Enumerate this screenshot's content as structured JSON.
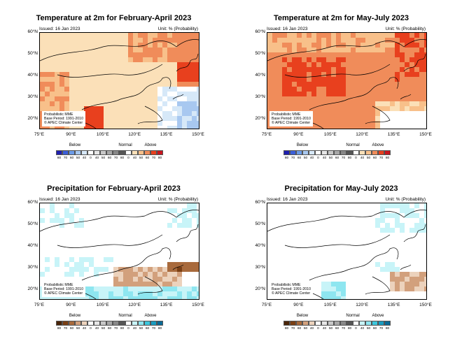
{
  "panels": [
    {
      "id": "temp-fma",
      "title": "Temperature at 2m for February-April 2023",
      "issued": "Issued: 16 Jan 2023",
      "unit": "Unit: % (Probability)",
      "info": [
        "Probabilistic MME",
        "Base Period: 1991-2010",
        "© APEC Climate Center"
      ],
      "lat_labels": [
        "60°N",
        "50°N",
        "40°N",
        "30°N",
        "20°N"
      ],
      "lon_labels": [
        "75°E",
        "90°E",
        "105°E",
        "120°E",
        "135°E",
        "150°E"
      ],
      "legend_categories": [
        "Below",
        "Normal",
        "Above"
      ],
      "legend_ticks": [
        "80",
        "70",
        "60",
        "50",
        "40",
        "0",
        "40",
        "50",
        "60",
        "70",
        "80",
        "0",
        "40",
        "50",
        "60",
        "70",
        "80"
      ],
      "legend_colors": [
        "#1f1fb0",
        "#3b5fd8",
        "#6c9be8",
        "#a8c8f0",
        "#d6e8f8",
        "#ffffff",
        "#e6e6e6",
        "#c8c8c8",
        "#a8a8a8",
        "#888888",
        "#555555",
        "#ffffff",
        "#fbe0b8",
        "#f8c08a",
        "#f08c5a",
        "#e8401e",
        "#c8141e"
      ],
      "kind": "temp"
    },
    {
      "id": "temp-mjj",
      "title": "Temperature at 2m for May-July 2023",
      "issued": "Issued: 16 Jan 2023",
      "unit": "Unit: % (Probability)",
      "info": [
        "Probabilistic MME",
        "Base Period: 1991-2010",
        "© APEC Climate Center"
      ],
      "lat_labels": [
        "60°N",
        "50°N",
        "40°N",
        "30°N",
        "20°N"
      ],
      "lon_labels": [
        "75°E",
        "90°E",
        "105°E",
        "120°E",
        "135°E",
        "150°E"
      ],
      "legend_categories": [
        "Below",
        "Normal",
        "Above"
      ],
      "legend_ticks": [
        "80",
        "70",
        "60",
        "50",
        "40",
        "0",
        "40",
        "50",
        "60",
        "70",
        "80",
        "0",
        "40",
        "50",
        "60",
        "70",
        "80"
      ],
      "legend_colors": [
        "#1f1fb0",
        "#3b5fd8",
        "#6c9be8",
        "#a8c8f0",
        "#d6e8f8",
        "#ffffff",
        "#e6e6e6",
        "#c8c8c8",
        "#a8a8a8",
        "#888888",
        "#555555",
        "#ffffff",
        "#fbe0b8",
        "#f8c08a",
        "#f08c5a",
        "#e8401e",
        "#c8141e"
      ],
      "kind": "temp2"
    },
    {
      "id": "prec-fma",
      "title": "Precipitation for February-April 2023",
      "issued": "Issued: 16 Jan 2023",
      "unit": "Unit: % (Probability)",
      "info": [
        "Probabilistic MME",
        "Base Period: 1991-2010",
        "© APEC Climate Center"
      ],
      "lat_labels": [
        "60°N",
        "50°N",
        "40°N",
        "30°N",
        "20°N"
      ],
      "lon_labels": [
        "75°E",
        "90°E",
        "105°E",
        "120°E",
        "135°E",
        "150°E"
      ],
      "legend_categories": [
        "Below",
        "Normal",
        "Above"
      ],
      "legend_ticks": [
        "80",
        "70",
        "60",
        "50",
        "40",
        "0",
        "40",
        "50",
        "60",
        "70",
        "80",
        "0",
        "40",
        "50",
        "60",
        "70",
        "80"
      ],
      "legend_colors": [
        "#4a2408",
        "#7a3f14",
        "#a86a3c",
        "#d2a07c",
        "#ecd2bc",
        "#ffffff",
        "#e6e6e6",
        "#c8c8c8",
        "#a8a8a8",
        "#888888",
        "#555555",
        "#ffffff",
        "#c8f4f8",
        "#8ee6f0",
        "#3cc6dc",
        "#1a9cc0",
        "#0a6a96"
      ],
      "kind": "prec"
    },
    {
      "id": "prec-mjj",
      "title": "Precipitation for May-July 2023",
      "issued": "Issued: 16 Jan 2023",
      "unit": "Unit: % (Probability)",
      "info": [
        "Probabilistic MME",
        "Base Period: 1991-2010",
        "© APEC Climate Center"
      ],
      "lat_labels": [
        "60°N",
        "50°N",
        "40°N",
        "30°N",
        "20°N"
      ],
      "lon_labels": [
        "75°E",
        "90°E",
        "105°E",
        "120°E",
        "135°E",
        "150°E"
      ],
      "legend_categories": [
        "Below",
        "Normal",
        "Above"
      ],
      "legend_ticks": [
        "80",
        "70",
        "60",
        "50",
        "40",
        "0",
        "40",
        "50",
        "60",
        "70",
        "80",
        "0",
        "40",
        "50",
        "60",
        "70",
        "80"
      ],
      "legend_colors": [
        "#4a2408",
        "#7a3f14",
        "#a86a3c",
        "#d2a07c",
        "#ecd2bc",
        "#ffffff",
        "#e6e6e6",
        "#c8c8c8",
        "#a8a8a8",
        "#888888",
        "#555555",
        "#ffffff",
        "#c8f4f8",
        "#8ee6f0",
        "#3cc6dc",
        "#1a9cc0",
        "#0a6a96"
      ],
      "kind": "prec2"
    }
  ]
}
